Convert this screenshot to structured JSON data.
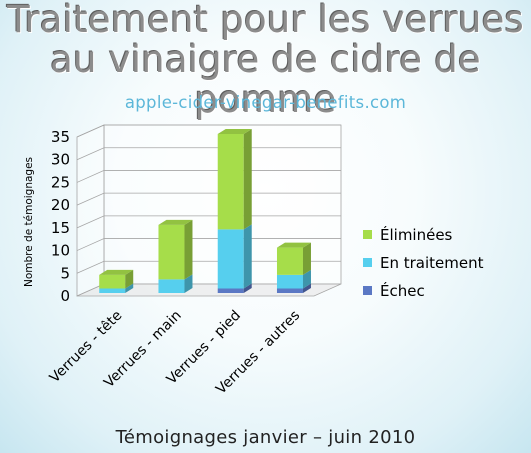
{
  "title_line1": "Traitement pour les verrues",
  "title_line2": "au vinaigre de cidre de pomme",
  "subtitle": "apple-cider-vinegar-benefits.com",
  "footer": "Témoignages janvier – juin 2010",
  "chart_data": {
    "type": "bar",
    "stacked": true,
    "three_d": true,
    "ylabel": "Nombre de témoignages",
    "xlabel": "",
    "ylim": [
      0,
      35
    ],
    "yticks": [
      0,
      5,
      10,
      15,
      20,
      25,
      30,
      35
    ],
    "grid": true,
    "legend_position": "right",
    "categories": [
      "Verrues - tête",
      "Verrues - main",
      "Verrues - pied",
      "Verrues - autres"
    ],
    "series": [
      {
        "name": "Échec",
        "values": [
          0,
          0,
          1,
          1
        ],
        "color": "#5b78c4"
      },
      {
        "name": "En traitement",
        "values": [
          1,
          3,
          13,
          3
        ],
        "color": "#56cfee"
      },
      {
        "name": "Éliminées",
        "values": [
          3,
          12,
          21,
          6
        ],
        "color": "#a6dd4a"
      }
    ]
  }
}
